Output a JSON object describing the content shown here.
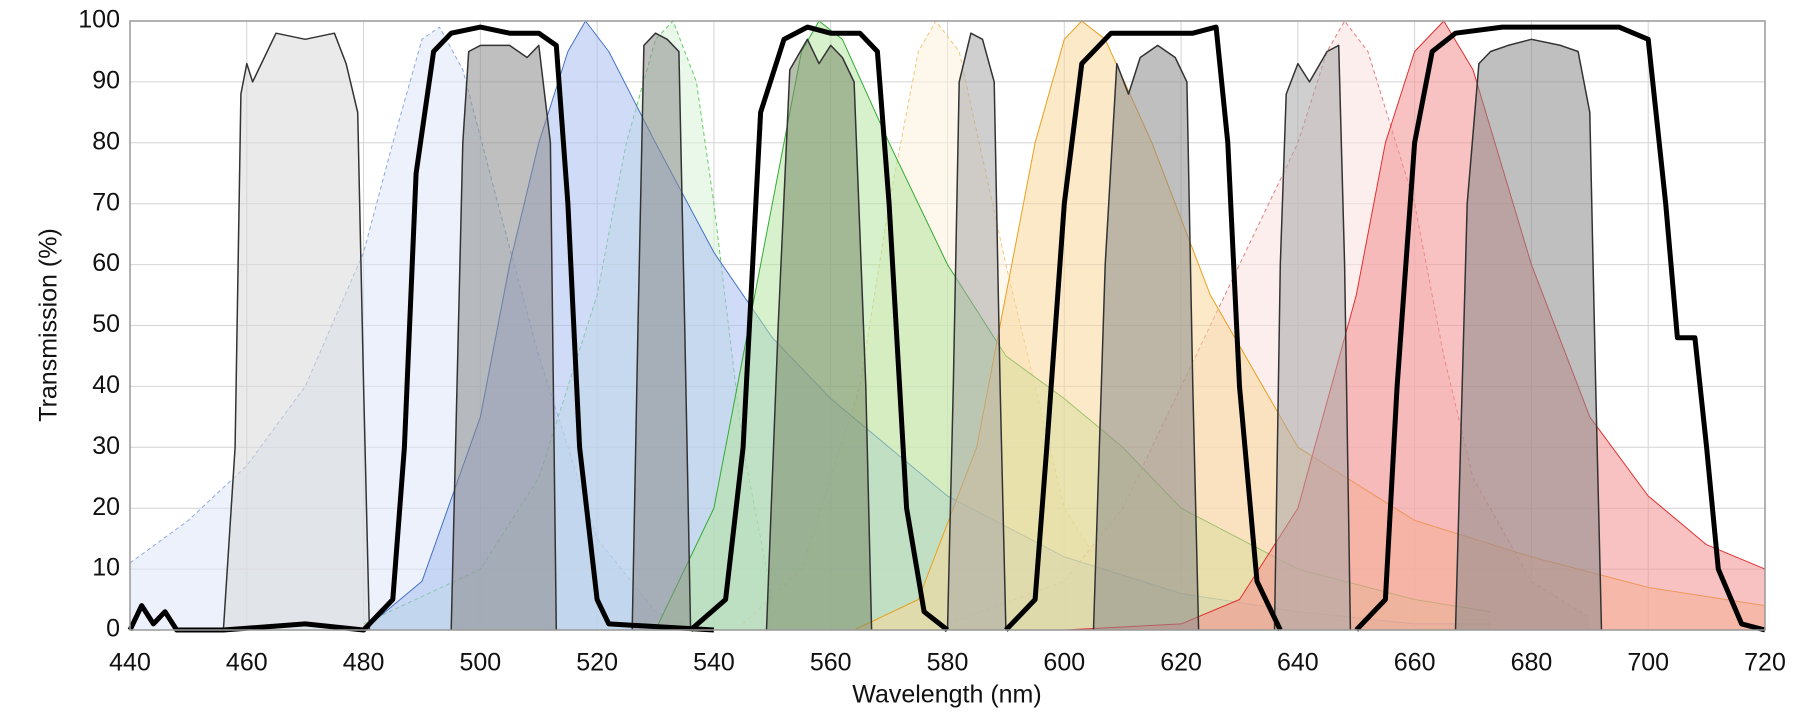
{
  "chart_data": {
    "type": "line",
    "xlabel": "Wavelength (nm)",
    "ylabel": "Transmission (%)",
    "xlim": [
      440,
      720
    ],
    "xticks": [
      440,
      460,
      480,
      500,
      520,
      540,
      560,
      580,
      600,
      620,
      640,
      660,
      680,
      700,
      720
    ],
    "ylim": [
      0,
      100
    ],
    "yticks": [
      0,
      10,
      20,
      30,
      40,
      50,
      60,
      70,
      80,
      90,
      100
    ],
    "grid": true,
    "series": [
      {
        "color": "#8ea9db",
        "fill": "#dde6f7",
        "dash": true,
        "width": 1,
        "x": [
          440,
          450,
          460,
          470,
          480,
          485,
          490,
          493,
          497,
          503,
          510,
          520,
          530,
          535
        ],
        "values": [
          11,
          18,
          27,
          40,
          62,
          80,
          97,
          99,
          92,
          70,
          45,
          15,
          3,
          1
        ]
      },
      {
        "color": "#66cc66",
        "fill": "#d8f3d8",
        "dash": true,
        "width": 1,
        "x": [
          480,
          500,
          510,
          520,
          525,
          530,
          533,
          537,
          540,
          545,
          550
        ],
        "values": [
          1,
          10,
          25,
          55,
          80,
          97,
          100,
          90,
          70,
          30,
          5
        ]
      },
      {
        "color": "#f0c878",
        "fill": "#fdf1dc",
        "dash": true,
        "width": 1,
        "x": [
          545,
          555,
          565,
          570,
          575,
          578,
          582,
          590,
          600,
          610,
          620
        ],
        "values": [
          1,
          10,
          40,
          70,
          95,
          100,
          95,
          60,
          20,
          5,
          1
        ]
      },
      {
        "color": "#e08080",
        "fill": "#fbe0e0",
        "dash": true,
        "width": 1,
        "x": [
          580,
          600,
          610,
          620,
          630,
          640,
          645,
          648,
          652,
          660,
          665,
          670,
          680,
          690
        ],
        "values": [
          1,
          8,
          20,
          40,
          60,
          80,
          95,
          100,
          95,
          70,
          45,
          25,
          8,
          2
        ]
      },
      {
        "color": "#4472c4",
        "fill": "#a9c0f0",
        "dash": false,
        "width": 1,
        "x": [
          480,
          490,
          500,
          505,
          510,
          515,
          518,
          522,
          530,
          540,
          550,
          560,
          580,
          600,
          620,
          640,
          660,
          673
        ],
        "values": [
          0,
          8,
          35,
          60,
          80,
          95,
          100,
          95,
          80,
          62,
          48,
          38,
          22,
          12,
          6,
          3,
          1,
          1
        ]
      },
      {
        "color": "#33aa33",
        "fill": "#b5e6a0",
        "dash": false,
        "width": 1,
        "x": [
          530,
          540,
          550,
          555,
          558,
          562,
          570,
          580,
          590,
          600,
          610,
          620,
          640,
          660,
          673
        ],
        "values": [
          0,
          20,
          70,
          95,
          100,
          97,
          80,
          60,
          45,
          38,
          30,
          20,
          10,
          5,
          3
        ]
      },
      {
        "color": "#e8a020",
        "fill": "#f7d79a",
        "dash": false,
        "width": 1,
        "x": [
          564,
          575,
          585,
          590,
          595,
          600,
          603,
          607,
          615,
          625,
          640,
          660,
          680,
          700,
          720
        ],
        "values": [
          0,
          5,
          30,
          55,
          80,
          97,
          100,
          97,
          80,
          55,
          30,
          18,
          12,
          7,
          4
        ]
      },
      {
        "color": "#e03030",
        "fill": "#f29090",
        "dash": false,
        "width": 1,
        "x": [
          600,
          620,
          630,
          640,
          650,
          655,
          660,
          665,
          670,
          680,
          690,
          700,
          710,
          720
        ],
        "values": [
          0,
          1,
          5,
          20,
          55,
          80,
          95,
          100,
          92,
          60,
          35,
          22,
          14,
          10
        ]
      },
      {
        "color": "#333333",
        "fill": "#d8d8d8",
        "dash": false,
        "width": 1.5,
        "x": [
          456,
          458,
          459,
          460,
          461,
          465,
          470,
          475,
          477,
          479,
          480,
          481
        ],
        "values": [
          0,
          30,
          88,
          93,
          90,
          98,
          97,
          98,
          93,
          85,
          40,
          0
        ]
      },
      {
        "color": "#333333",
        "fill": "#8a8a8a",
        "dash": false,
        "width": 1.5,
        "x": [
          495,
          497,
          498,
          500,
          505,
          508,
          510,
          512,
          513
        ],
        "values": [
          0,
          80,
          95,
          96,
          96,
          94,
          96,
          80,
          0
        ]
      },
      {
        "color": "#333333",
        "fill": "#8a8a8a",
        "dash": false,
        "width": 1.5,
        "x": [
          526,
          527,
          528,
          530,
          532,
          534,
          535,
          536
        ],
        "values": [
          0,
          50,
          96,
          98,
          97,
          95,
          50,
          0
        ]
      },
      {
        "color": "#333333",
        "fill": "#7a8a6a",
        "dash": false,
        "width": 1.5,
        "x": [
          549,
          551,
          553,
          556,
          558,
          560,
          562,
          564,
          566,
          567
        ],
        "values": [
          0,
          50,
          92,
          97,
          93,
          96,
          94,
          90,
          40,
          0
        ]
      },
      {
        "color": "#333333",
        "fill": "#a8a8a8",
        "dash": false,
        "width": 1.5,
        "x": [
          580,
          581,
          582,
          584,
          586,
          588,
          589,
          590
        ],
        "values": [
          0,
          40,
          90,
          98,
          97,
          90,
          40,
          0
        ]
      },
      {
        "color": "#333333",
        "fill": "#8a8a8a",
        "dash": false,
        "width": 1.5,
        "x": [
          605,
          607,
          609,
          611,
          613,
          616,
          619,
          621,
          622,
          623
        ],
        "values": [
          0,
          60,
          93,
          88,
          94,
          96,
          94,
          90,
          40,
          0
        ]
      },
      {
        "color": "#333333",
        "fill": "#a8a8a8",
        "dash": false,
        "width": 1.5,
        "x": [
          636,
          637,
          638,
          640,
          642,
          645,
          647,
          648,
          649
        ],
        "values": [
          0,
          60,
          88,
          93,
          90,
          95,
          96,
          60,
          0
        ]
      },
      {
        "color": "#333333",
        "fill": "#8a8a8a",
        "dash": false,
        "width": 1.5,
        "x": [
          667,
          669,
          671,
          673,
          676,
          680,
          685,
          688,
          690,
          691,
          692
        ],
        "values": [
          0,
          70,
          93,
          95,
          96,
          97,
          96,
          95,
          85,
          40,
          0
        ]
      },
      {
        "color": "#000000",
        "dash": false,
        "width": 5,
        "x": [
          440,
          442,
          444,
          446,
          448,
          456,
          470,
          480,
          485,
          487,
          489,
          492,
          495,
          500,
          505,
          510,
          513,
          515,
          517,
          520,
          522,
          540
        ],
        "values": [
          0,
          4,
          1,
          3,
          0,
          0,
          1,
          0,
          5,
          30,
          75,
          95,
          98,
          99,
          98,
          98,
          96,
          70,
          30,
          5,
          1,
          0
        ]
      },
      {
        "color": "#000000",
        "dash": false,
        "width": 5,
        "x": [
          536,
          542,
          545,
          548,
          552,
          556,
          560,
          565,
          568,
          570,
          573,
          576,
          580
        ],
        "values": [
          0,
          5,
          30,
          85,
          97,
          99,
          98,
          98,
          95,
          70,
          20,
          3,
          0
        ]
      },
      {
        "color": "#000000",
        "dash": false,
        "width": 5,
        "x": [
          590,
          595,
          597,
          600,
          603,
          608,
          615,
          622,
          626,
          628,
          630,
          633,
          637
        ],
        "values": [
          0,
          5,
          30,
          70,
          93,
          98,
          98,
          98,
          99,
          80,
          40,
          8,
          0
        ]
      },
      {
        "color": "#000000",
        "dash": false,
        "width": 5,
        "x": [
          650,
          655,
          657,
          660,
          663,
          667,
          675,
          685,
          695,
          700,
          703,
          705,
          707,
          708,
          710,
          712,
          716,
          720
        ],
        "values": [
          0,
          5,
          40,
          80,
          95,
          98,
          99,
          99,
          99,
          97,
          70,
          48,
          48,
          48,
          30,
          10,
          1,
          0
        ]
      }
    ]
  }
}
